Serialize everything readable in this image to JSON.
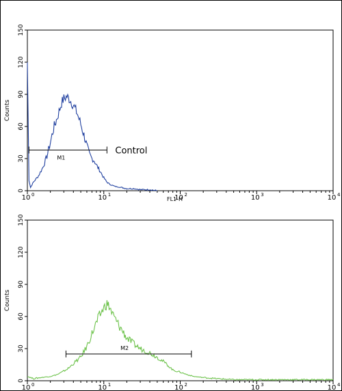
{
  "chart_data": [
    {
      "type": "line",
      "x_scale": "log",
      "xlim": [
        1,
        10000
      ],
      "ylim": [
        0,
        150
      ],
      "x_ticks": [
        "10",
        "10",
        "10",
        "10",
        "10"
      ],
      "x_tick_exponents": [
        "0",
        "1",
        "2",
        "3",
        "4"
      ],
      "y_ticks": [
        "0",
        "30",
        "60",
        "90",
        "120",
        "150"
      ],
      "xlabel": "FL1-H",
      "ylabel": "Counts",
      "annotations": [
        "M1",
        "Control"
      ],
      "marker": {
        "label": "M1",
        "x_range": [
          1.05,
          11
        ],
        "y": 38
      },
      "color": "#1f3f9f",
      "series": [
        {
          "x": [
            1.0,
            1.05,
            1.1,
            1.2,
            1.4,
            1.6,
            1.8,
            2.0,
            2.2,
            2.4,
            2.6,
            2.8,
            3.0,
            3.3,
            3.6,
            4.0,
            4.5,
            5.0,
            5.5,
            6.0,
            6.5,
            7.0,
            7.5,
            8.0,
            9.0,
            10,
            11,
            12,
            14,
            17,
            20,
            25,
            30,
            40,
            50
          ],
          "y": [
            120,
            10,
            3,
            8,
            14,
            22,
            32,
            45,
            58,
            66,
            74,
            82,
            86,
            88,
            85,
            80,
            72,
            62,
            52,
            42,
            34,
            30,
            28,
            24,
            18,
            12,
            8,
            6,
            4,
            3,
            2,
            2,
            1,
            1,
            0
          ]
        }
      ]
    },
    {
      "type": "line",
      "x_scale": "log",
      "xlim": [
        1,
        10000
      ],
      "ylim": [
        0,
        150
      ],
      "x_ticks": [
        "10",
        "10",
        "10",
        "10",
        "10"
      ],
      "x_tick_exponents": [
        "0",
        "1",
        "2",
        "3",
        "4"
      ],
      "y_ticks": [
        "0",
        "30",
        "60",
        "90",
        "120",
        "150"
      ],
      "xlabel": "",
      "ylabel": "Counts",
      "annotations": [
        "M2"
      ],
      "marker": {
        "label": "M2",
        "x_range": [
          3.2,
          140
        ],
        "y": 25
      },
      "color": "#6cc24a",
      "series": [
        {
          "x": [
            1.0,
            1.2,
            1.5,
            2,
            2.5,
            3,
            3.5,
            4,
            5,
            6,
            7,
            8,
            9,
            10,
            11,
            12,
            13,
            15,
            17,
            20,
            25,
            30,
            35,
            40,
            50,
            60,
            70,
            80,
            100,
            120,
            150,
            200,
            300,
            500,
            1000,
            2000,
            5000,
            10000
          ],
          "y": [
            4,
            2,
            3,
            4,
            6,
            9,
            12,
            16,
            22,
            32,
            44,
            54,
            62,
            68,
            72,
            68,
            62,
            54,
            48,
            40,
            34,
            30,
            28,
            26,
            22,
            18,
            14,
            10,
            8,
            6,
            4,
            3,
            2,
            1,
            1,
            1,
            1,
            1
          ]
        }
      ]
    }
  ]
}
